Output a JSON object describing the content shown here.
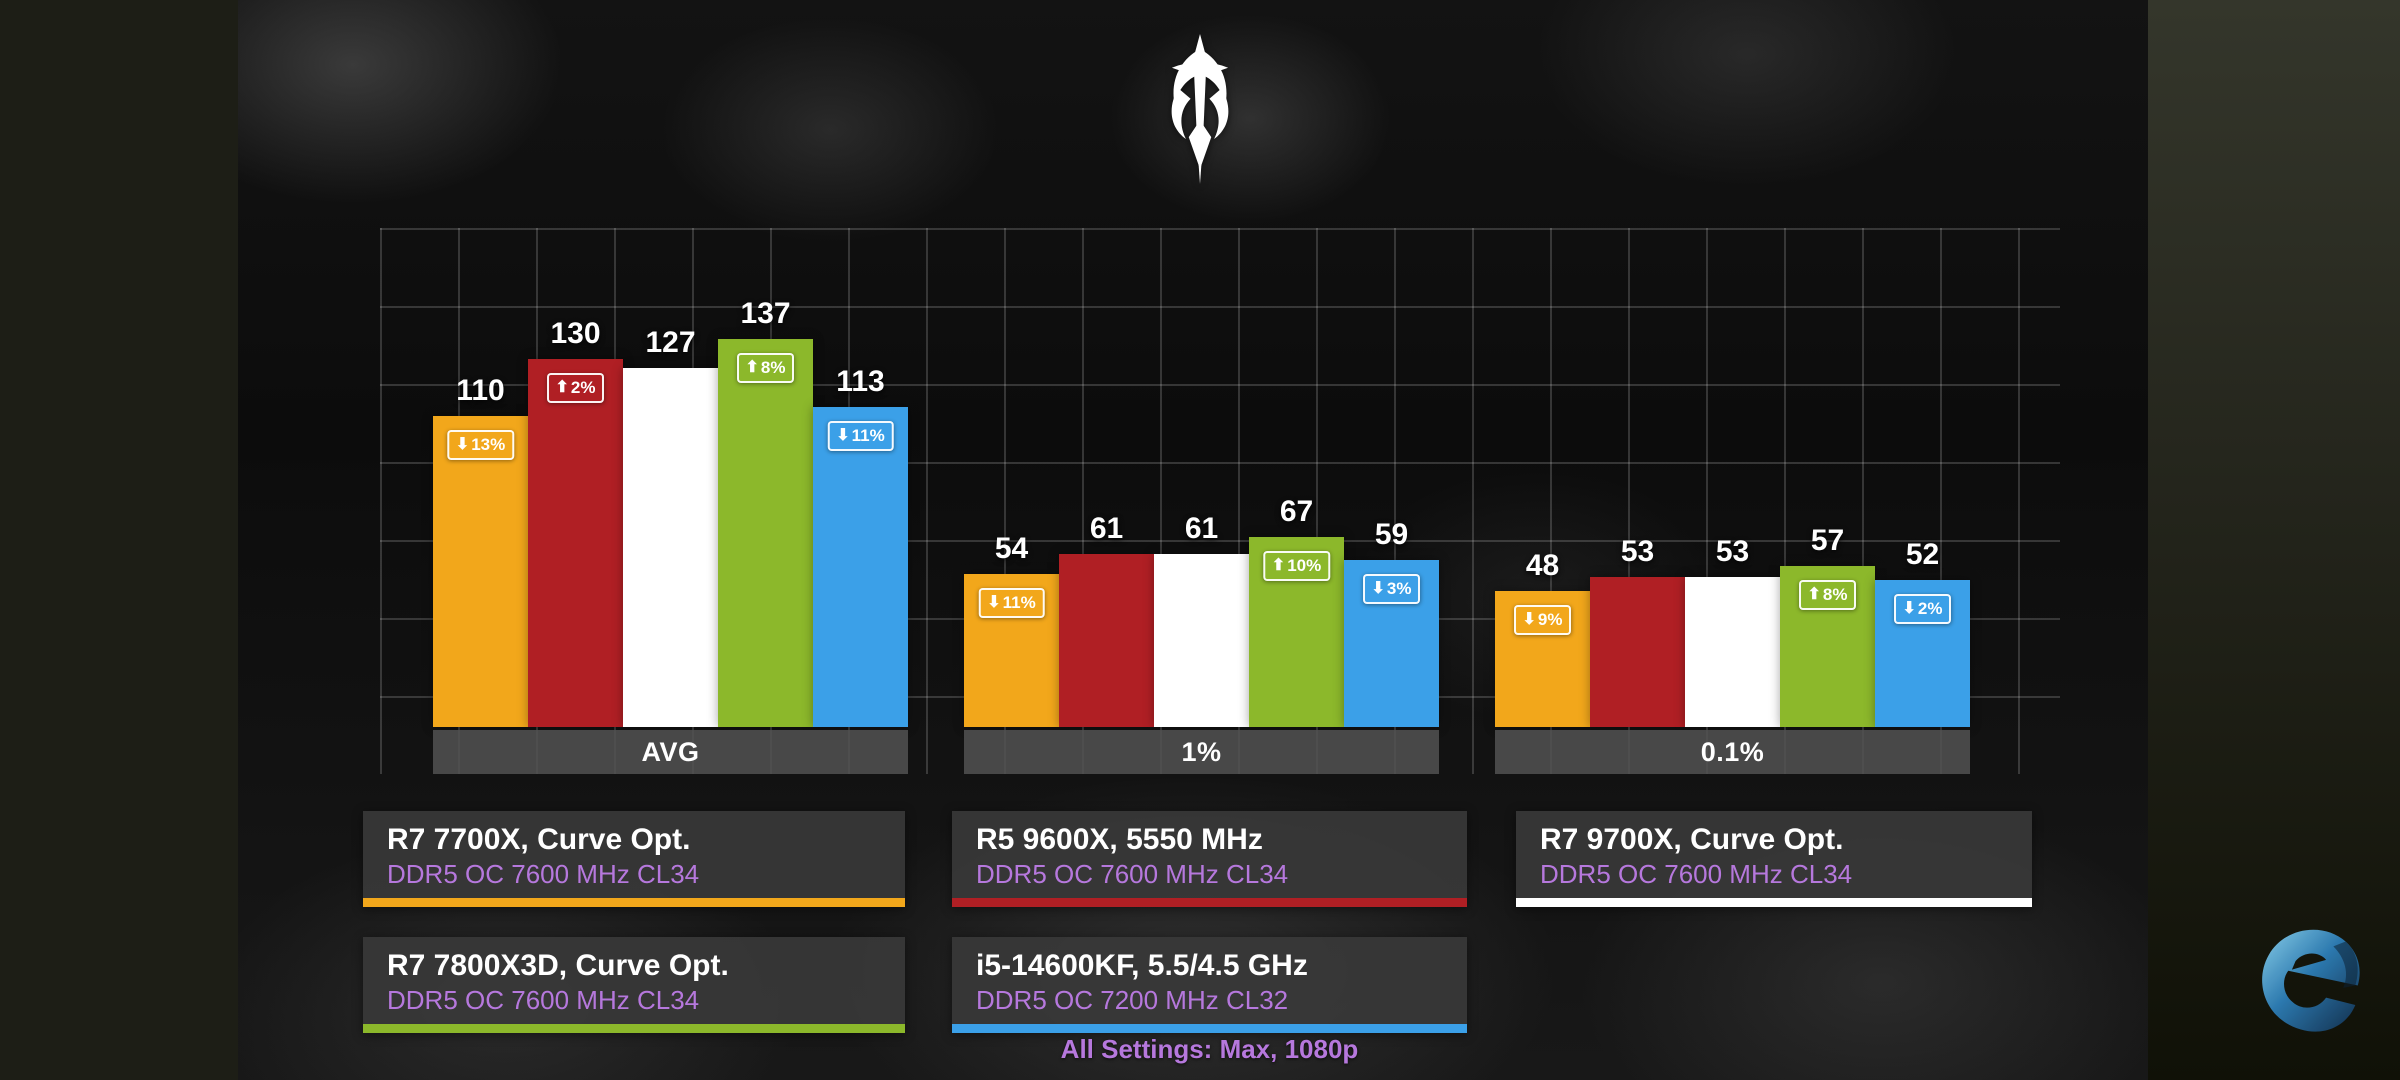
{
  "colors": {
    "accent_purple": "#B678DD",
    "grid_line": "rgba(255,255,255,0.17)",
    "card_bg": "#383838"
  },
  "emblem": {
    "name": "clan-emblem"
  },
  "watermark": {
    "name": "eteknix-logo"
  },
  "chart_data": {
    "type": "bar",
    "title": "",
    "categories": [
      "AVG",
      "1%",
      "0.1%"
    ],
    "ylim": [
      0,
      176
    ],
    "grid": true,
    "legend_position": "bottom",
    "baseline_series": "R7 9700X, Curve Opt.",
    "series": [
      {
        "name": "R7 7700X, Curve Opt.",
        "memory": "DDR5 OC 7600 MHz CL34",
        "color": "#F2A71B",
        "values": [
          110,
          54,
          48
        ],
        "deltas": [
          {
            "dir": "down",
            "pct": "13%"
          },
          {
            "dir": "down",
            "pct": "11%"
          },
          {
            "dir": "down",
            "pct": "9%"
          }
        ]
      },
      {
        "name": "R5 9600X, 5550 MHz",
        "memory": "DDR5 OC 7600 MHz CL34",
        "color": "#B01F24",
        "values": [
          130,
          61,
          53
        ],
        "deltas": [
          {
            "dir": "up",
            "pct": "2%"
          },
          null,
          null
        ]
      },
      {
        "name": "R7 9700X, Curve Opt.",
        "memory": "DDR5 OC 7600 MHz CL34",
        "color": "#FFFFFF",
        "values": [
          127,
          61,
          53
        ],
        "deltas": [
          null,
          null,
          null
        ]
      },
      {
        "name": "R7 7800X3D, Curve Opt.",
        "memory": "DDR5 OC 7600 MHz CL34",
        "color": "#8CB82B",
        "values": [
          137,
          67,
          57
        ],
        "deltas": [
          {
            "dir": "up",
            "pct": "8%"
          },
          {
            "dir": "up",
            "pct": "10%"
          },
          {
            "dir": "up",
            "pct": "8%"
          }
        ]
      },
      {
        "name": "i5-14600KF, 5.5/4.5 GHz",
        "memory": "DDR5 OC 7200 MHz CL32",
        "color": "#3BA0E8",
        "values": [
          113,
          59,
          52
        ],
        "deltas": [
          {
            "dir": "down",
            "pct": "11%"
          },
          {
            "dir": "down",
            "pct": "3%"
          },
          {
            "dir": "down",
            "pct": "2%"
          }
        ]
      }
    ]
  },
  "legend": {
    "cards": [
      {
        "title": "R7 7700X, Curve Opt.",
        "subtitle": "DDR5 OC 7600 MHz CL34",
        "color": "#F2A71B"
      },
      {
        "title": "R5 9600X, 5550 MHz",
        "subtitle": "DDR5 OC 7600 MHz CL34",
        "color": "#B01F24"
      },
      {
        "title": "R7 9700X, Curve Opt.",
        "subtitle": "DDR5 OC 7600 MHz CL34",
        "color": "#FFFFFF"
      },
      {
        "title": "R7 7800X3D, Curve Opt.",
        "subtitle": "DDR5 OC 7600 MHz CL34",
        "color": "#8CB82B"
      },
      {
        "title": "i5-14600KF, 5.5/4.5 GHz",
        "subtitle": "DDR5 OC 7200 MHz CL32",
        "color": "#3BA0E8"
      }
    ]
  },
  "footer": {
    "settings_label": "All Settings: Max, 1080p"
  }
}
